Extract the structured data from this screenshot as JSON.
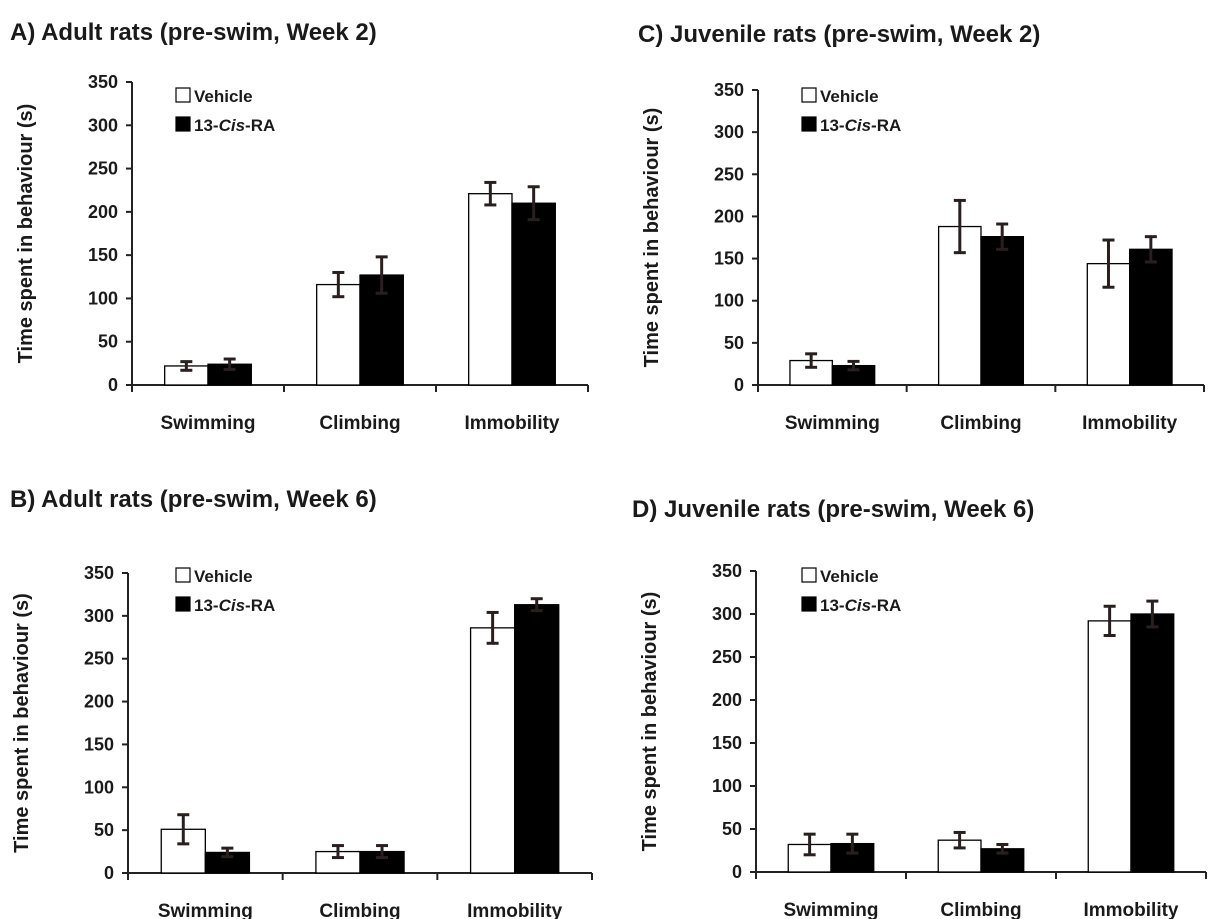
{
  "chart_data": [
    {
      "type": "bar",
      "title": "A) Adult rats (pre-swim, Week 2)",
      "ylabel": "Time spent in behaviour (s)",
      "xlabel": "",
      "categories": [
        "Swimming",
        "Climbing",
        "Immobility"
      ],
      "ylim": [
        0,
        350
      ],
      "yticks": [
        "0",
        "50",
        "100",
        "150",
        "200",
        "250",
        "300",
        "350"
      ],
      "legend": {
        "placement": "top-left",
        "entries": [
          {
            "name": "Vehicle",
            "italic_part": ""
          },
          {
            "name": "13-Cis-RA",
            "prefix": "13-",
            "italic": "Cis",
            "suffix": "-RA"
          }
        ]
      },
      "series": [
        {
          "name": "Vehicle",
          "color": "#ffffff",
          "values": [
            22,
            116,
            221
          ],
          "errors": [
            5,
            14,
            13
          ]
        },
        {
          "name": "13-Cis-RA",
          "color": "#000000",
          "values": [
            24,
            127,
            210
          ],
          "errors": [
            6,
            21,
            19
          ]
        }
      ]
    },
    {
      "type": "bar",
      "title": "C) Juvenile rats (pre-swim, Week 2)",
      "ylabel": "Time spent in behaviour (s)",
      "xlabel": "",
      "categories": [
        "Swimming",
        "Climbing",
        "Immobility"
      ],
      "ylim": [
        0,
        350
      ],
      "yticks": [
        "0",
        "50",
        "100",
        "150",
        "200",
        "250",
        "300",
        "350"
      ],
      "legend": {
        "placement": "top-left",
        "entries": [
          {
            "name": "Vehicle"
          },
          {
            "name": "13-Cis-RA",
            "prefix": "13-",
            "italic": "Cis",
            "suffix": "-RA"
          }
        ]
      },
      "series": [
        {
          "name": "Vehicle",
          "color": "#ffffff",
          "values": [
            29,
            188,
            144
          ],
          "errors": [
            8,
            31,
            28
          ]
        },
        {
          "name": "13-Cis-RA",
          "color": "#000000",
          "values": [
            23,
            176,
            161
          ],
          "errors": [
            5,
            15,
            15
          ]
        }
      ]
    },
    {
      "type": "bar",
      "title": "B) Adult rats (pre-swim, Week 6)",
      "ylabel": "Time spent in behaviour (s)",
      "xlabel": "",
      "categories": [
        "Swimming",
        "Climbing",
        "Immobility"
      ],
      "ylim": [
        0,
        350
      ],
      "yticks": [
        "0",
        "50",
        "100",
        "150",
        "200",
        "250",
        "300",
        "350"
      ],
      "legend": {
        "placement": "top-left",
        "entries": [
          {
            "name": "Vehicle"
          },
          {
            "name": "13-Cis-RA",
            "prefix": "13-",
            "italic": "Cis",
            "suffix": "-RA"
          }
        ]
      },
      "series": [
        {
          "name": "Vehicle",
          "color": "#ffffff",
          "values": [
            51,
            25,
            286
          ],
          "errors": [
            17,
            7,
            18
          ]
        },
        {
          "name": "13-Cis-RA",
          "color": "#000000",
          "values": [
            24,
            25,
            313
          ],
          "errors": [
            5,
            7,
            7
          ]
        }
      ]
    },
    {
      "type": "bar",
      "title": "D) Juvenile rats (pre-swim, Week 6)",
      "ylabel": "Time spent in behaviour (s)",
      "xlabel": "",
      "categories": [
        "Swimming",
        "Climbing",
        "Immobility"
      ],
      "ylim": [
        0,
        350
      ],
      "yticks": [
        "0",
        "50",
        "100",
        "150",
        "200",
        "250",
        "300",
        "350"
      ],
      "legend": {
        "placement": "top-left",
        "entries": [
          {
            "name": "Vehicle"
          },
          {
            "name": "13-Cis-RA",
            "prefix": "13-",
            "italic": "Cis",
            "suffix": "-RA"
          }
        ]
      },
      "series": [
        {
          "name": "Vehicle",
          "color": "#ffffff",
          "values": [
            32,
            37,
            292
          ],
          "errors": [
            12,
            9,
            17
          ]
        },
        {
          "name": "13-Cis-RA",
          "color": "#000000",
          "values": [
            33,
            27,
            300
          ],
          "errors": [
            11,
            5,
            15
          ]
        }
      ]
    }
  ]
}
